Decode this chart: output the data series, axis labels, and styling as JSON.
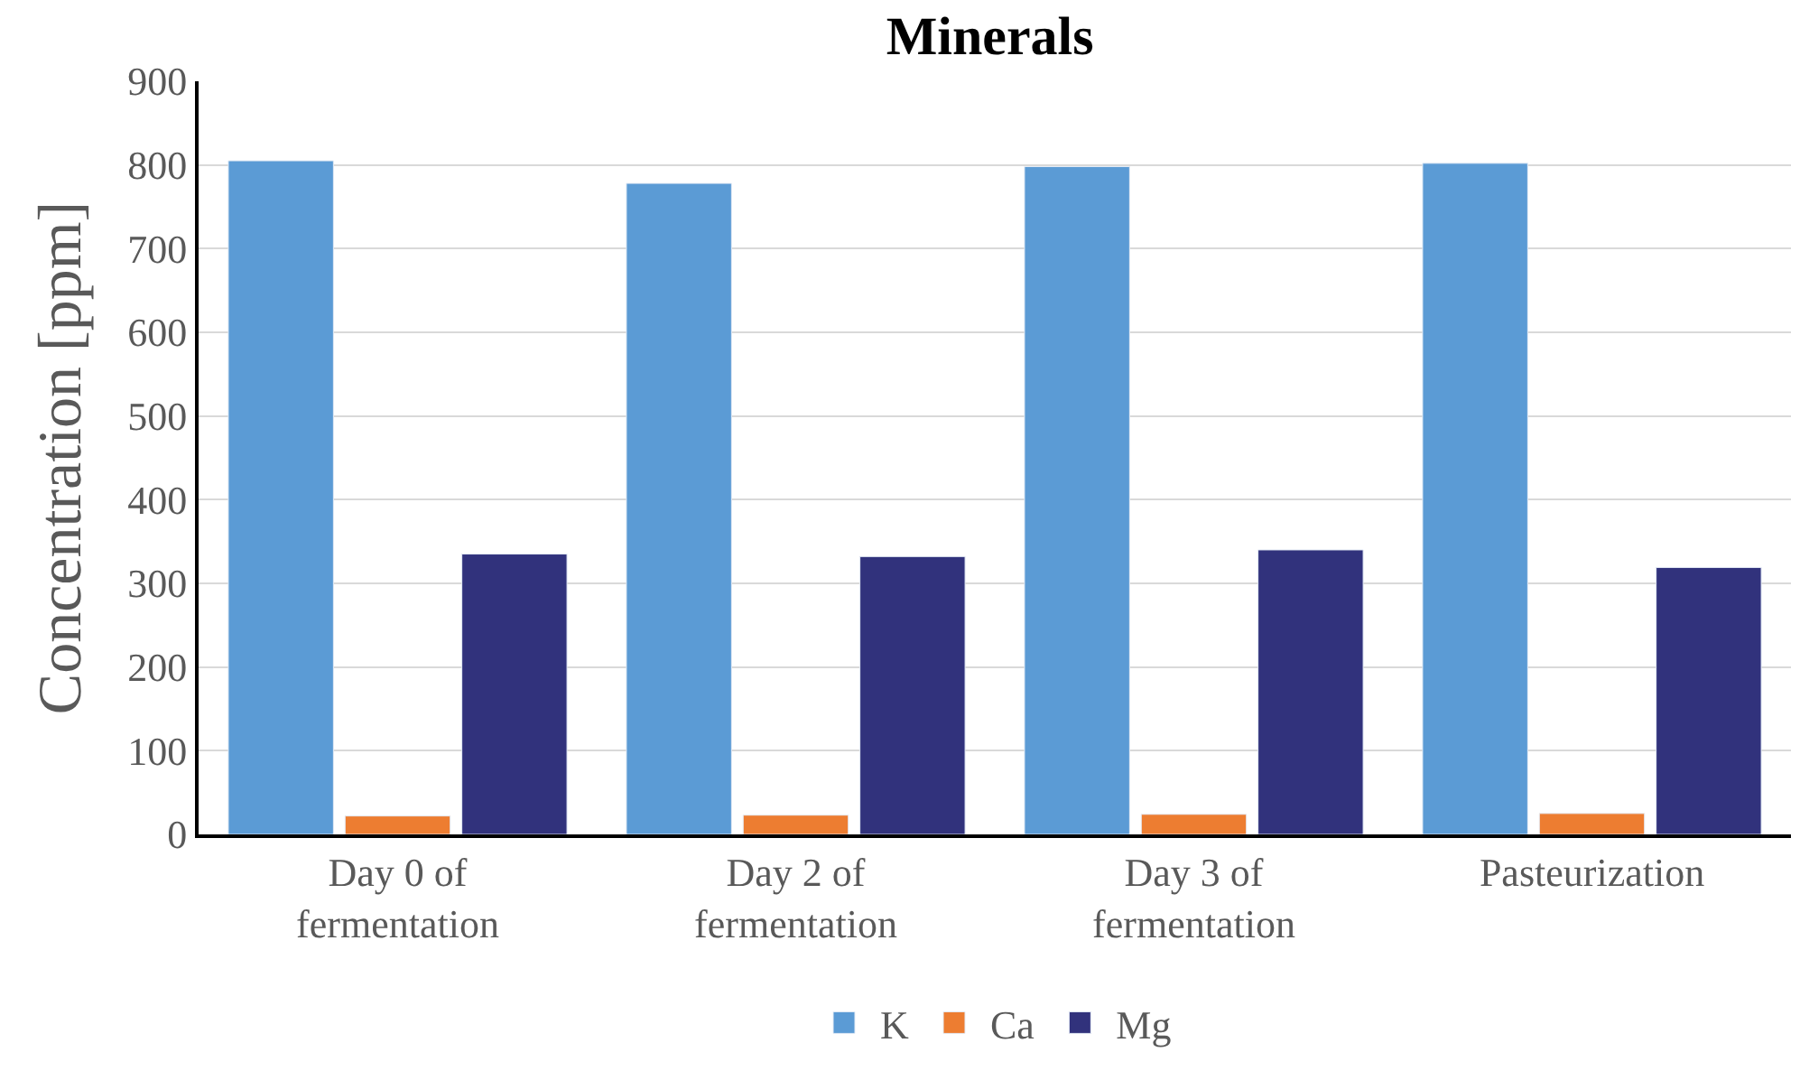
{
  "chart_data": {
    "type": "bar",
    "title": "Minerals",
    "ylabel": "Concentration [ppm]",
    "categories": [
      "Day 0 of\nfermentation",
      "Day 2 of\nfermentation",
      "Day 3 of\nfermentation",
      "Pasteurization"
    ],
    "series": [
      {
        "name": "K",
        "color": "#5b9bd5",
        "values": [
          805,
          778,
          798,
          802
        ]
      },
      {
        "name": "Ca",
        "color": "#ed7d31",
        "values": [
          22,
          23,
          24,
          25
        ]
      },
      {
        "name": "Mg",
        "color": "#31327c",
        "values": [
          335,
          332,
          340,
          319
        ]
      }
    ],
    "ylim": [
      0,
      900
    ],
    "yticks": [
      0,
      100,
      200,
      300,
      400,
      500,
      600,
      700,
      800,
      900
    ],
    "grid": "y",
    "legend": "bottom"
  }
}
